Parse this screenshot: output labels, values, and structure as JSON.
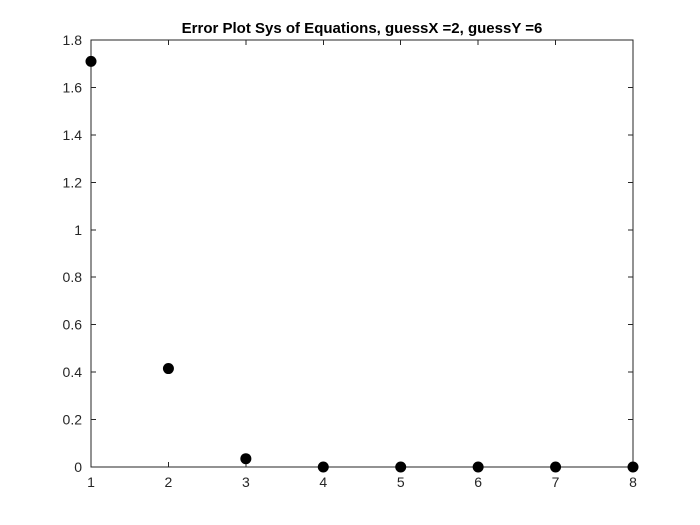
{
  "chart_data": {
    "type": "scatter",
    "title": "Error Plot Sys of Equations, guessX =2, guessY =6",
    "xlabel": "",
    "ylabel": "",
    "xlim": [
      1,
      8
    ],
    "ylim": [
      0,
      1.8
    ],
    "xticks": [
      1,
      2,
      3,
      4,
      5,
      6,
      7,
      8
    ],
    "yticks": [
      0,
      0.2,
      0.4,
      0.6,
      0.8,
      1,
      1.2,
      1.4,
      1.6,
      1.8
    ],
    "grid": false,
    "series": [
      {
        "x": [
          1,
          2,
          3,
          4,
          5,
          6,
          7,
          8
        ],
        "y": [
          1.71,
          0.415,
          0.035,
          0.0,
          0.0,
          0.0,
          0.0,
          0.0
        ]
      }
    ],
    "colors": {
      "marker": "#000000",
      "axes": "#262626",
      "background": "#ffffff"
    }
  }
}
